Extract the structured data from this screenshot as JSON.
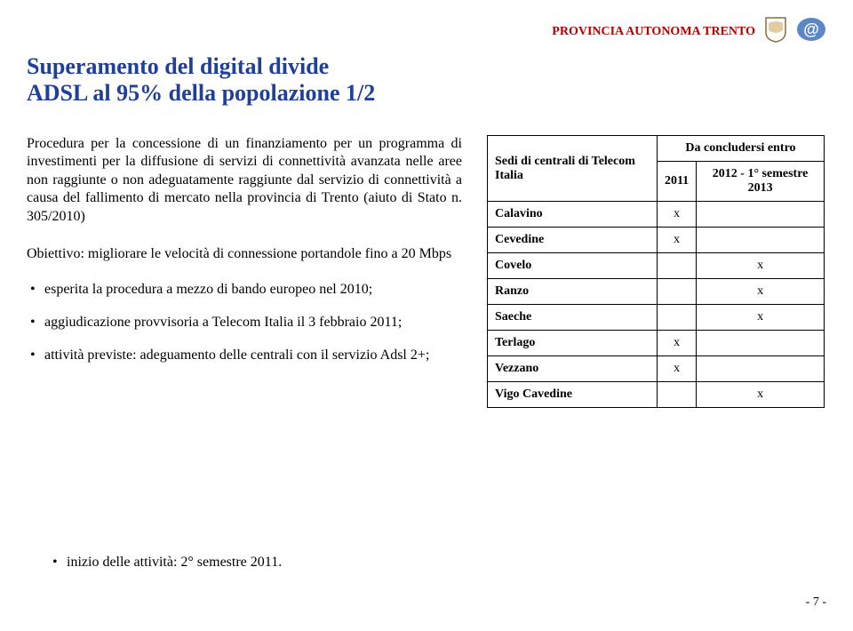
{
  "header": {
    "org": "PROVINCIA AUTONOMA TRENTO",
    "org_color": "#b30000",
    "org_fontsize": 14,
    "emblem_stroke": "#8B6F3E",
    "at_bg": "#5b87c7",
    "at_text": "@"
  },
  "title": {
    "line1": "Superamento del digital divide",
    "line2": "ADSL al 95% della popolazione 1/2",
    "color": "#1f3f9c",
    "fontsize": 26
  },
  "intro": {
    "text": "Procedura per la concessione di un finanziamento per un programma di investimenti per la diffusione di servizi di connettività avanzata nelle aree non raggiunte o non adeguatamente raggiunte dal servizio di connettività a causa del fallimento di mercato nella provincia di Trento (aiuto di Stato n. 305/2010)",
    "fontsize": 16
  },
  "objective": {
    "text": "Obiettivo: migliorare le velocità di connessione portandole fino a 20 Mbps",
    "fontsize": 16
  },
  "bullets": {
    "b1": "esperita la procedura a mezzo di bando europeo nel 2010;",
    "b2": "aggiudicazione provvisoria a Telecom Italia il 3 febbraio 2011;",
    "b3": "attività previste: adeguamento delle centrali con il servizio Adsl 2+;",
    "fontsize": 16
  },
  "table": {
    "header_top": "Da concludersi entro",
    "header_left": "Sedi di centrali di Telecom Italia",
    "col1": "2011",
    "col2": "2012 - 1° semestre 2013",
    "fontsize": 14,
    "rows": [
      {
        "name": "Calavino",
        "c1": "x",
        "c2": ""
      },
      {
        "name": "Cevedine",
        "c1": "x",
        "c2": ""
      },
      {
        "name": "Covelo",
        "c1": "",
        "c2": "x"
      },
      {
        "name": "Ranzo",
        "c1": "",
        "c2": "x"
      },
      {
        "name": "Saeche",
        "c1": "",
        "c2": "x"
      },
      {
        "name": "Terlago",
        "c1": "x",
        "c2": ""
      },
      {
        "name": "Vezzano",
        "c1": "x",
        "c2": ""
      },
      {
        "name": "Vigo Cavedine",
        "c1": "",
        "c2": "x"
      }
    ]
  },
  "footer_bullet": "inizio delle attività: 2° semestre 2011.",
  "page": "- 7 -",
  "colors": {
    "text": "#000000",
    "table_border": "#000000"
  }
}
